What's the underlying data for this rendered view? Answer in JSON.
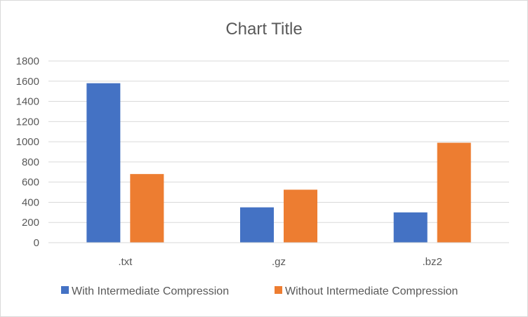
{
  "chart_data": {
    "type": "bar",
    "title": "Chart Title",
    "categories": [
      ".txt",
      ".gz",
      ".bz2"
    ],
    "series": [
      {
        "name": "With Intermediate Compression",
        "values": [
          1580,
          350,
          300
        ],
        "color": "#4472c4"
      },
      {
        "name": "Without Intermediate Compression",
        "values": [
          680,
          525,
          990
        ],
        "color": "#ed7d31"
      }
    ],
    "xlabel": "",
    "ylabel": "",
    "ylim": [
      0,
      1800
    ],
    "y_ticks": [
      "0",
      "200",
      "400",
      "600",
      "800",
      "1000",
      "1200",
      "1400",
      "1600",
      "1800"
    ],
    "grid": true,
    "legend": "bottom"
  }
}
